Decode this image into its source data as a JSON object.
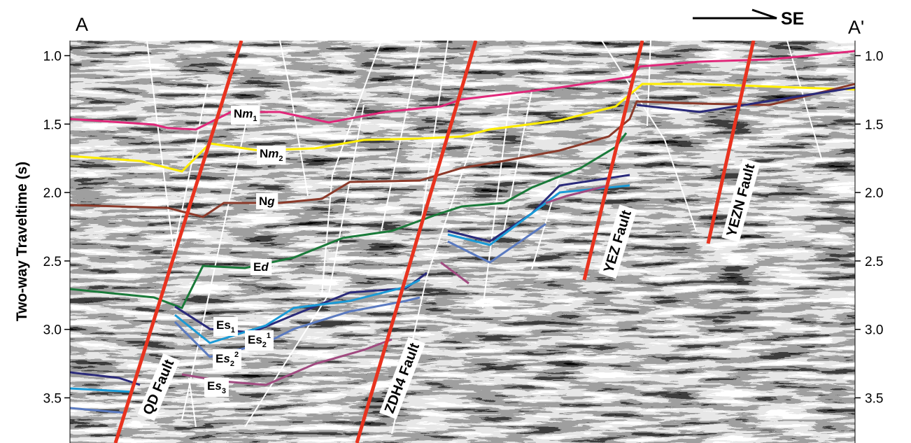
{
  "header": {
    "left_end": "A",
    "right_end": "A'",
    "direction": "SE"
  },
  "axis": {
    "title": "Two-way Traveltime (s)",
    "ylim": [
      0.89,
      3.83
    ],
    "yticks": [
      {
        "value": 1,
        "label": "1.0"
      },
      {
        "value": 1.5,
        "label": "1.5"
      },
      {
        "value": 2,
        "label": "2.0"
      },
      {
        "value": 2.5,
        "label": "2.5"
      },
      {
        "value": 3,
        "label": "3.0"
      },
      {
        "value": 3.5,
        "label": "3.5"
      }
    ]
  },
  "horizons": [
    {
      "text": "N",
      "italic": "m",
      "sub": "1"
    },
    {
      "text": "N",
      "italic": "m",
      "sub": "2"
    },
    {
      "text": "N",
      "italic": "g"
    },
    {
      "text": "E",
      "italic": "d"
    },
    {
      "text": "Es",
      "sub": "1"
    },
    {
      "text": "Es",
      "sub": "2",
      "sup": "1"
    },
    {
      "text": "E",
      "italic": "s",
      "sub": "2",
      "sup": "2"
    },
    {
      "text": "E",
      "italic": "s",
      "sub": "3"
    }
  ],
  "faults": [
    "QD Fault",
    "ZDH4 Fault",
    "YEZ Fault",
    "YEZN Fault"
  ]
}
